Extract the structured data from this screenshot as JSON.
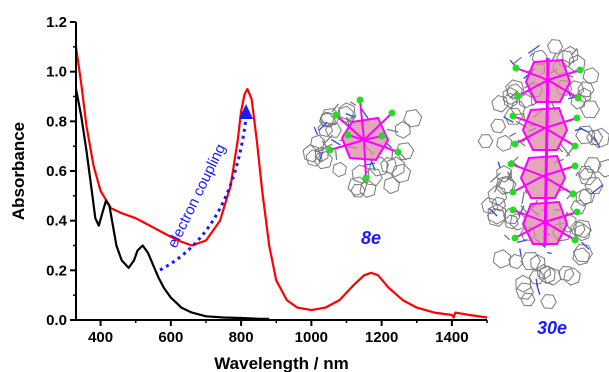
{
  "chart_data": {
    "type": "line",
    "title": "",
    "xlabel": "Wavelength / nm",
    "ylabel": "Absorbance",
    "xlim": [
      330,
      1500
    ],
    "ylim": [
      0,
      1.2
    ],
    "x_ticks": [
      400,
      600,
      800,
      1000,
      1200,
      1400
    ],
    "y_ticks": [
      0.0,
      0.2,
      0.4,
      0.6,
      0.8,
      1.0,
      1.2
    ],
    "x_tick_labels": [
      "400",
      "600",
      "800",
      "1000",
      "1200",
      "1400"
    ],
    "y_tick_labels": [
      "0.0",
      "0.2",
      "0.4",
      "0.6",
      "0.8",
      "1.0",
      "1.2"
    ],
    "grid": false,
    "legend": "none",
    "series": [
      {
        "color": "#ff0000",
        "x": [
          330,
          345,
          360,
          380,
          400,
          430,
          460,
          500,
          540,
          580,
          620,
          660,
          700,
          740,
          770,
          790,
          800,
          810,
          818,
          830,
          845,
          860,
          880,
          900,
          930,
          960,
          1000,
          1040,
          1080,
          1120,
          1150,
          1170,
          1190,
          1220,
          1260,
          1300,
          1350,
          1400,
          1405,
          1410,
          1450,
          1500
        ],
        "y": [
          1.1,
          0.95,
          0.78,
          0.62,
          0.52,
          0.45,
          0.43,
          0.41,
          0.38,
          0.35,
          0.32,
          0.3,
          0.32,
          0.4,
          0.54,
          0.72,
          0.84,
          0.91,
          0.93,
          0.89,
          0.72,
          0.52,
          0.3,
          0.16,
          0.08,
          0.05,
          0.04,
          0.05,
          0.08,
          0.14,
          0.18,
          0.19,
          0.18,
          0.13,
          0.08,
          0.05,
          0.03,
          0.02,
          0.01,
          0.03,
          0.02,
          0.01
        ]
      },
      {
        "color": "#000000",
        "x": [
          330,
          345,
          360,
          375,
          385,
          395,
          405,
          415,
          425,
          435,
          445,
          460,
          480,
          495,
          505,
          520,
          535,
          550,
          565,
          580,
          600,
          630,
          660,
          700,
          750,
          800,
          850,
          880
        ],
        "y": [
          0.93,
          0.82,
          0.68,
          0.52,
          0.41,
          0.38,
          0.43,
          0.48,
          0.46,
          0.38,
          0.3,
          0.24,
          0.21,
          0.24,
          0.28,
          0.3,
          0.27,
          0.22,
          0.17,
          0.13,
          0.09,
          0.05,
          0.03,
          0.015,
          0.01,
          0.008,
          0.005,
          0.005
        ]
      }
    ],
    "annotations": [
      {
        "text": "electron coupling",
        "color": "#1a1aff"
      },
      {
        "text": "8e",
        "color": "#1a1aff"
      },
      {
        "text": "30e",
        "color": "#1a1aff"
      }
    ]
  },
  "labels": {
    "annotation": "electron coupling",
    "cluster_small": "8e",
    "cluster_large": "30e"
  },
  "colors": {
    "red_series": "#ff0000",
    "black_series": "#000000",
    "accent_blue": "#1a1aff",
    "metal_magenta": "#ff00ff",
    "ligand_green": "#22dd22",
    "polyhedron_pink": "#d98aa6",
    "ligand_grey": "#7a7a7a",
    "nitrogen_blue": "#2b4cd6"
  }
}
